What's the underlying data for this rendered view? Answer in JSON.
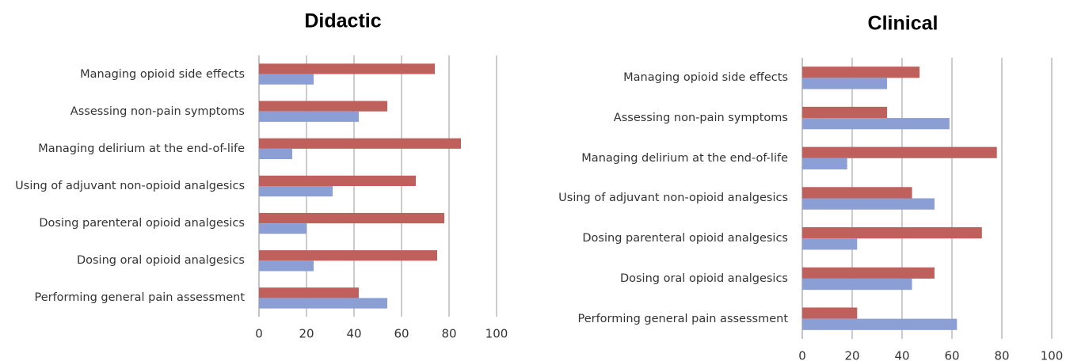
{
  "chart_data": [
    {
      "type": "barh",
      "title": "Didactic",
      "categories": [
        "Managing opioid side effects",
        "Assessing non-pain symptoms",
        "Managing delirium at the end-of-life",
        "Using of adjuvant non-opioid analgesics",
        "Dosing parenteral opioid analgesics",
        "Dosing oral opioid analgesics",
        "Performing general pain assessment"
      ],
      "series": [
        {
          "color": "#c0605d",
          "values": [
            74,
            54,
            85,
            66,
            78,
            75,
            42
          ]
        },
        {
          "color": "#8c9fd4",
          "values": [
            23,
            42,
            14,
            31,
            20,
            23,
            54
          ]
        }
      ],
      "xlim": [
        0,
        100
      ],
      "xticks": [
        0,
        20,
        40,
        60,
        80,
        100
      ],
      "grid": true
    },
    {
      "type": "barh",
      "title": "Clinical",
      "categories": [
        "Managing opioid side effects",
        "Assessing non-pain symptoms",
        "Managing delirium at the end-of-life",
        "Using of adjuvant non-opioid analgesics",
        "Dosing parenteral opioid analgesics",
        "Dosing oral opioid analgesics",
        "Performing general pain assessment"
      ],
      "series": [
        {
          "color": "#c0605d",
          "values": [
            47,
            34,
            78,
            44,
            72,
            53,
            22
          ]
        },
        {
          "color": "#8c9fd4",
          "values": [
            34,
            59,
            18,
            53,
            22,
            44,
            62
          ]
        }
      ],
      "xlim": [
        0,
        100
      ],
      "xticks": [
        0,
        20,
        40,
        60,
        80,
        100
      ],
      "grid": true
    }
  ]
}
